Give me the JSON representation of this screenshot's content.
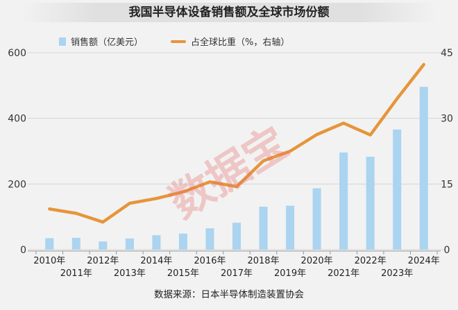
{
  "chart_data": {
    "type": "bar",
    "title": "我国半导体设备销售额及全球市场份额",
    "categories": [
      "2010年",
      "2011年",
      "2012年",
      "2013年",
      "2014年",
      "2015年",
      "2016年",
      "2017年",
      "2018年",
      "2019年",
      "2020年",
      "2021年",
      "2022年",
      "2023年",
      "2024年"
    ],
    "series": [
      {
        "name": "销售额（亿美元）",
        "type": "bar",
        "axis": "left",
        "color": "#aad4f0",
        "values": [
          35,
          36,
          25,
          34,
          44,
          49,
          65,
          82,
          131,
          134,
          187,
          296,
          283,
          366,
          496
        ]
      },
      {
        "name": "占全球比重（%，右轴）",
        "type": "line",
        "axis": "right",
        "color": "#e6953a",
        "values": [
          9.3,
          8.3,
          6.3,
          10.6,
          11.7,
          13.2,
          15.5,
          14.4,
          20.3,
          22.5,
          26.3,
          28.9,
          26.2,
          34.5,
          42.3
        ]
      }
    ],
    "y_left": {
      "range": [
        0,
        600
      ],
      "ticks": [
        "0",
        "200",
        "400",
        "600"
      ]
    },
    "y_right": {
      "range": [
        0,
        45
      ],
      "ticks": [
        "0",
        "15",
        "30",
        "45"
      ]
    },
    "grid": true,
    "legend_position": "top-left"
  },
  "watermark": "数据宝",
  "source": "数据来源：日本半导体制造装置协会"
}
